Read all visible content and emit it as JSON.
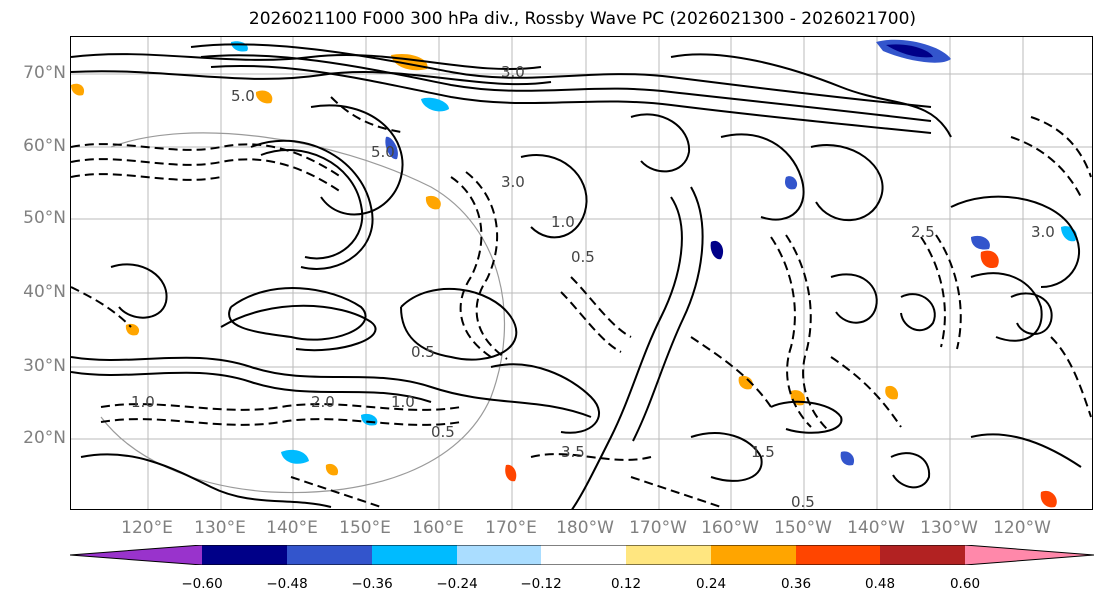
{
  "title": "2026021100 F000 300 hPa div., Rossby Wave PC (2026021300 - 2026021700)",
  "map": {
    "lat_labels": [
      "70°N",
      "60°N",
      "50°N",
      "40°N",
      "30°N",
      "20°N"
    ],
    "lon_labels": [
      "120°E",
      "130°E",
      "140°E",
      "150°E",
      "160°E",
      "170°E",
      "180°W",
      "170°W",
      "160°W",
      "150°W",
      "140°W",
      "130°W",
      "120°W"
    ],
    "contour_labels": [
      "5.0",
      "3.0",
      "0.5",
      "1.0",
      "2.0",
      "3.5",
      "1.5",
      "0.5",
      "3.0",
      "5.0",
      "1.0",
      "0.5",
      "1.0",
      "2.5",
      "3.0",
      "0.5"
    ]
  },
  "colorbar": {
    "tick_labels": [
      "−0.60",
      "−0.48",
      "−0.36",
      "−0.24",
      "−0.12",
      "0.12",
      "0.24",
      "0.36",
      "0.48",
      "0.60"
    ],
    "colors": [
      "#9933cc",
      "#000088",
      "#3355cc",
      "#00bbff",
      "#aaddff",
      "#ffffff",
      "#ffe680",
      "#ffa500",
      "#ff4500",
      "#b22222",
      "#ff88aa"
    ]
  }
}
